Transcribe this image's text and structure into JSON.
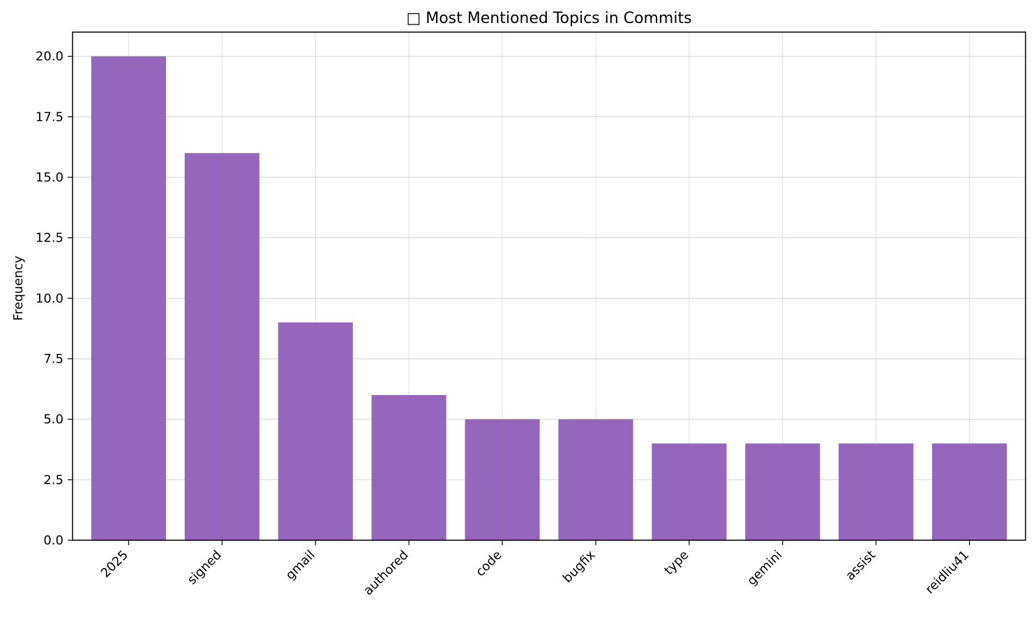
{
  "chart_data": {
    "type": "bar",
    "title": "□ Most Mentioned Topics in Commits",
    "xlabel": "",
    "ylabel": "Frequency",
    "categories": [
      "2025",
      "signed",
      "gmail",
      "authored",
      "code",
      "bugfix",
      "type",
      "gemini",
      "assist",
      "reidliu41"
    ],
    "values": [
      20,
      16,
      9,
      6,
      5,
      5,
      4,
      4,
      4,
      4
    ],
    "ylim": [
      0,
      21
    ],
    "yticks": [
      "0.0",
      "2.5",
      "5.0",
      "7.5",
      "10.0",
      "12.5",
      "15.0",
      "17.5",
      "20.0"
    ],
    "grid": true,
    "bar_color": "#9467bd",
    "legend": "none"
  }
}
